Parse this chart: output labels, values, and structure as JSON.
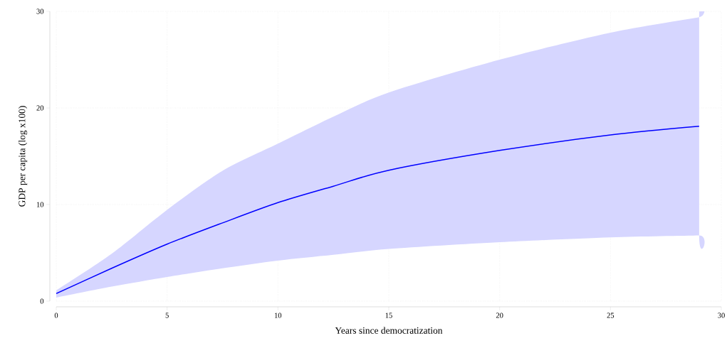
{
  "chart_data": {
    "type": "line",
    "xlabel": "Years since democratization",
    "ylabel": "GDP per capita (log x100)",
    "x": [
      0,
      2.5,
      5,
      7.5,
      10,
      12.5,
      15,
      20,
      25,
      29
    ],
    "series": [
      {
        "color": "#0000ff",
        "values": [
          0.78,
          3.4,
          5.9,
          8.1,
          10.2,
          11.9,
          13.55,
          15.6,
          17.2,
          18.1
        ],
        "lower": [
          0.37,
          1.5,
          2.5,
          3.4,
          4.2,
          4.8,
          5.4,
          6.1,
          6.6,
          6.8
        ],
        "upper": [
          1.1,
          4.9,
          9.45,
          13.5,
          16.3,
          19.1,
          21.6,
          25.0,
          27.8,
          29.4
        ]
      }
    ],
    "xlim": [
      0,
      30
    ],
    "ylim": [
      0,
      30
    ],
    "xticks": [
      0,
      5,
      10,
      15,
      20,
      25,
      30
    ],
    "yticks": [
      0,
      10,
      20,
      30
    ],
    "grid": true,
    "line_style": "solid",
    "marker": "none"
  }
}
